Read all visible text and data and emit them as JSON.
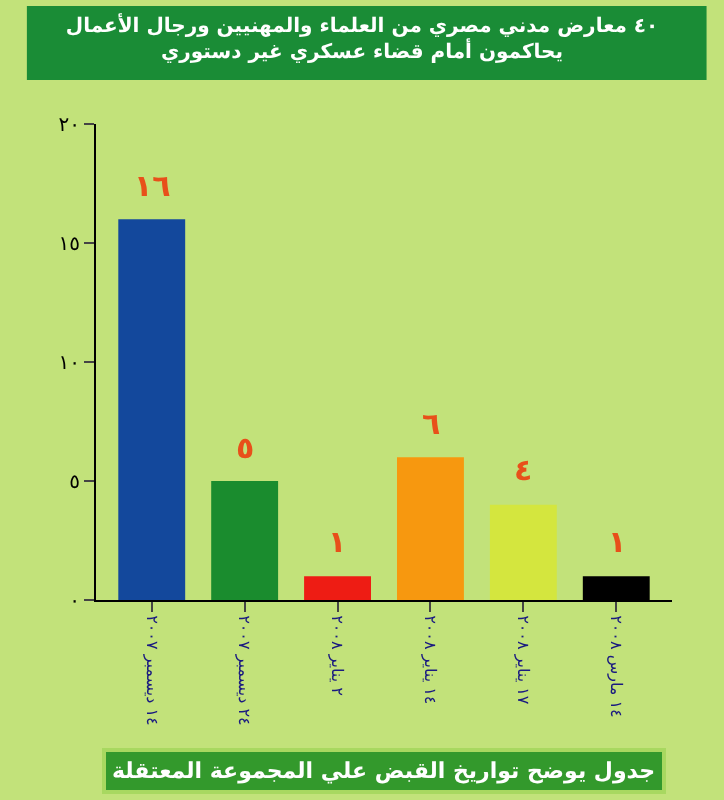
{
  "chart_data": {
    "type": "bar",
    "title": "٤٠ معارض مدني مصري من العلماء والمهنيين ورجال الأعمال\nيحاكمون أمام قضاء عسكري غير دستوري",
    "categories": [
      "١٤ ديسمبر ٢٠٠٧",
      "٢٤ ديسمبر ٢٠٠٧",
      "٢ يناير ٢٠٠٨",
      "١٤ يناير ٢٠٠٨",
      "١٧ يناير ٢٠٠٨",
      "١٤ مارس ٢٠٠٨"
    ],
    "values": [
      16,
      5,
      1,
      6,
      4,
      1
    ],
    "colors": [
      "#13489c",
      "#1a8c2e",
      "#ee1c14",
      "#f7980f",
      "#d4e63e",
      "#000000"
    ],
    "value_labels": [
      "١٦",
      "٥",
      "١",
      "٦",
      "٤",
      "١"
    ],
    "ylim": [
      0,
      20
    ],
    "yticks": [
      {
        "value": 0,
        "label": "٠"
      },
      {
        "value": 5,
        "label": "٥"
      },
      {
        "value": 10,
        "label": "١٠"
      },
      {
        "value": 15,
        "label": "١٥"
      },
      {
        "value": 20,
        "label": "٢٠"
      }
    ],
    "grid": false,
    "annotations": [
      "جدول يوضح تواريخ القبض علي المجموعة المعتقلة"
    ]
  }
}
